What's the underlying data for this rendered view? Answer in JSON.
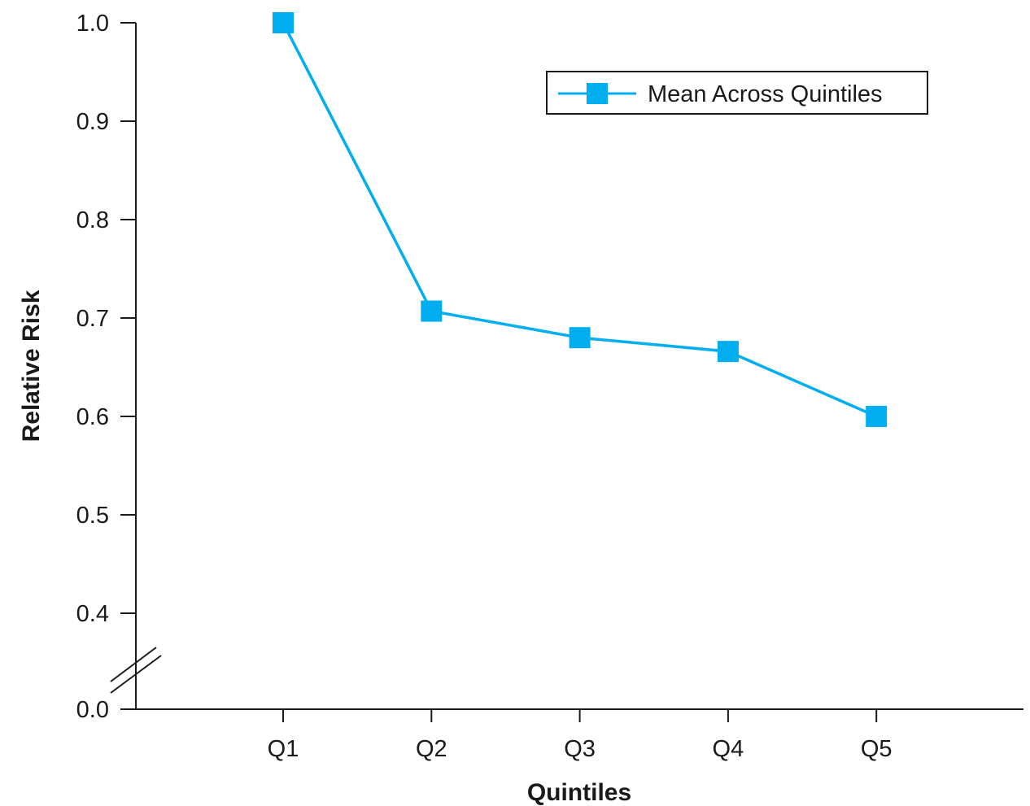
{
  "chart_data": {
    "type": "line",
    "categories": [
      "Q1",
      "Q2",
      "Q3",
      "Q4",
      "Q5"
    ],
    "series": [
      {
        "name": "Mean Across Quintiles",
        "values": [
          1.0,
          0.707,
          0.68,
          0.666,
          0.6
        ]
      }
    ],
    "title": "",
    "xlabel": "Quintiles",
    "ylabel": "Relative Risk",
    "ylim": [
      0.3,
      1.0
    ],
    "axis_break": "between 0.0 and 0.4",
    "yticks": [
      {
        "value": 0.0,
        "label": "0.0"
      },
      {
        "value": 0.4,
        "label": "0.4"
      },
      {
        "value": 0.5,
        "label": "0.5"
      },
      {
        "value": 0.6,
        "label": "0.6"
      },
      {
        "value": 0.7,
        "label": "0.7"
      },
      {
        "value": 0.8,
        "label": "0.8"
      },
      {
        "value": 0.9,
        "label": "0.9"
      },
      {
        "value": 1.0,
        "label": "1.0"
      }
    ],
    "grid": false,
    "legend_position": "top-right",
    "colors": {
      "series": "#00aeef",
      "axis": "#1a1a1a"
    },
    "marker": "square"
  }
}
